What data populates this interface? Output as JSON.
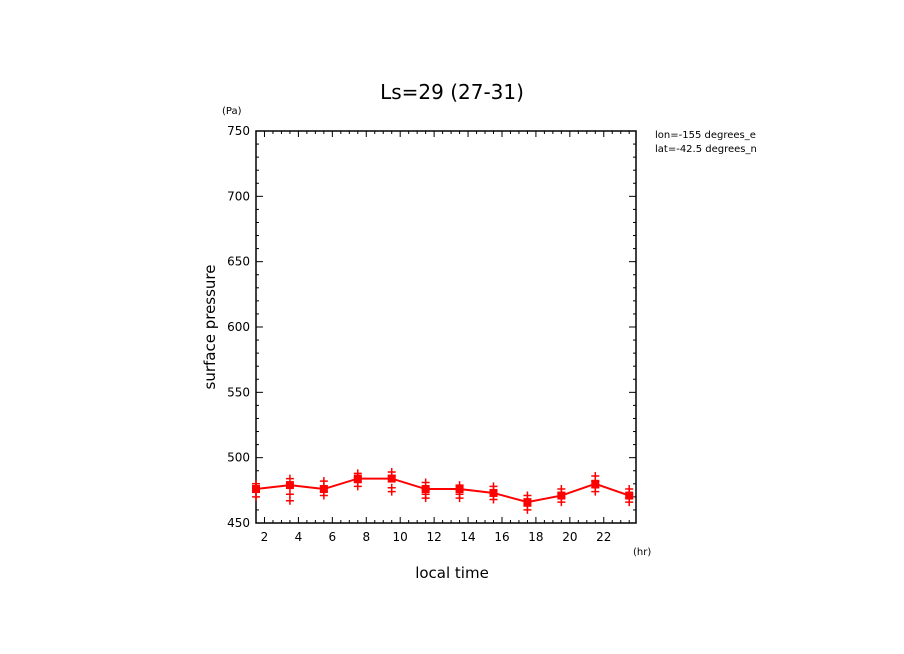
{
  "chart_data": {
    "type": "line",
    "title": "Ls=29 (27-31)",
    "xlabel": "local time",
    "ylabel": "surface pressure",
    "xunit": "(hr)",
    "yunit": "(Pa)",
    "annotations": [
      "lon=-155 degrees_e",
      "lat=-42.5 degrees_n"
    ],
    "xlim": [
      1.5,
      23.9
    ],
    "ylim": [
      450,
      750
    ],
    "xticks": [
      2,
      4,
      6,
      8,
      10,
      12,
      14,
      16,
      18,
      20,
      22
    ],
    "yticks": [
      450,
      500,
      550,
      600,
      650,
      700,
      750
    ],
    "grid": false,
    "series": [
      {
        "color": "#ff0000",
        "marker": "square",
        "x": [
          1.5,
          3.5,
          5.5,
          7.5,
          9.5,
          11.5,
          13.5,
          15.5,
          17.5,
          19.5,
          21.5,
          23.5
        ],
        "values": [
          476,
          479,
          476,
          484,
          484,
          476,
          476,
          473,
          466,
          471,
          480,
          471
        ]
      }
    ],
    "scatter": {
      "color": "#ff0000",
      "marker": "plus",
      "points": [
        {
          "x": 1.5,
          "y": [
            480,
            475,
            470
          ]
        },
        {
          "x": 3.5,
          "y": [
            484,
            478,
            472,
            467
          ]
        },
        {
          "x": 5.5,
          "y": [
            482,
            478,
            474,
            471
          ]
        },
        {
          "x": 7.5,
          "y": [
            488,
            485,
            481,
            478
          ]
        },
        {
          "x": 9.5,
          "y": [
            489,
            486,
            477,
            474
          ]
        },
        {
          "x": 11.5,
          "y": [
            481,
            476,
            472,
            469
          ]
        },
        {
          "x": 13.5,
          "y": [
            479,
            475,
            472,
            469
          ]
        },
        {
          "x": 15.5,
          "y": [
            478,
            475,
            471,
            468
          ]
        },
        {
          "x": 17.5,
          "y": [
            471,
            467,
            463,
            460
          ]
        },
        {
          "x": 19.5,
          "y": [
            476,
            473,
            470,
            466
          ]
        },
        {
          "x": 21.5,
          "y": [
            486,
            482,
            477,
            474
          ]
        },
        {
          "x": 23.5,
          "y": [
            476,
            472,
            469,
            466
          ]
        }
      ]
    }
  }
}
